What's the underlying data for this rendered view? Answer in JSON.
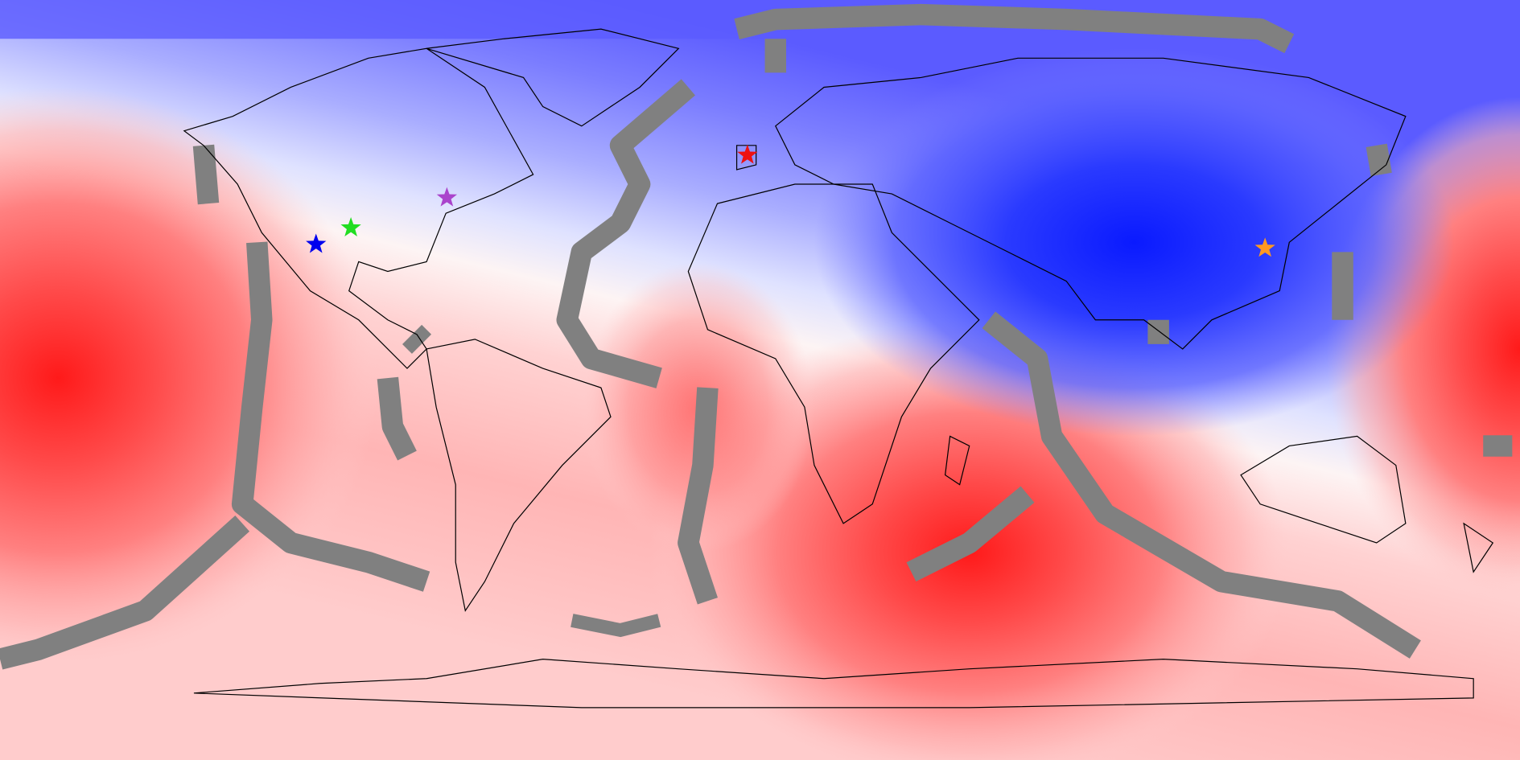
{
  "markers": [
    {
      "color": "#0000ee"
    },
    {
      "color": "#22dd22"
    },
    {
      "color": "#aa44cc"
    },
    {
      "color": "#ee1111"
    },
    {
      "color": "#ff9922"
    }
  ]
}
